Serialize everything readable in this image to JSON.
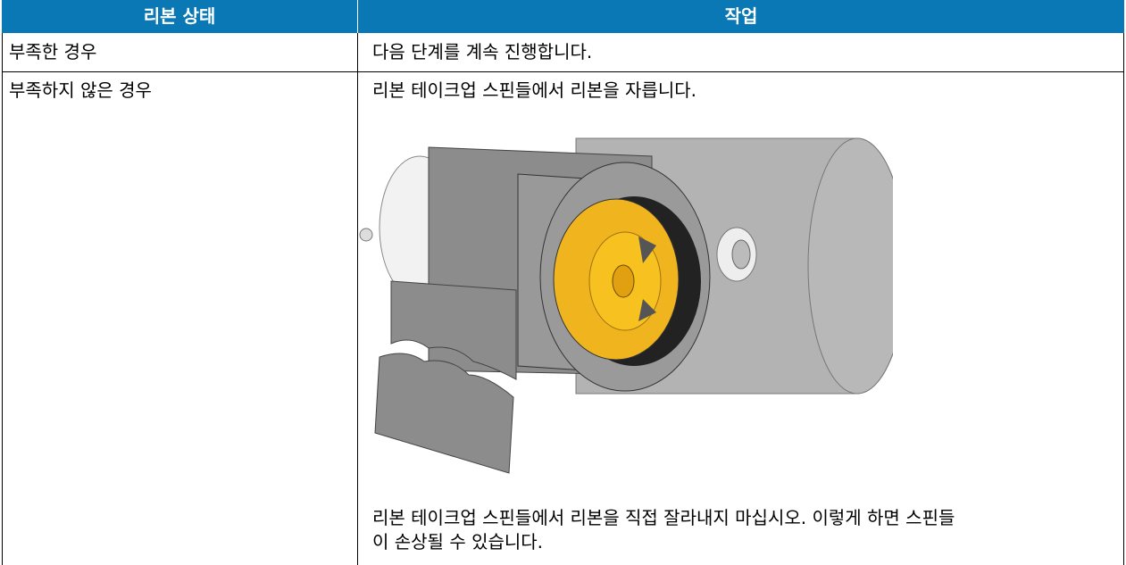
{
  "table": {
    "header": [
      "리본 상태",
      "작업"
    ],
    "rows": [
      [
        "부족한 경우",
        "다음 단계를 계속 진행합니다."
      ],
      [
        "부족하지 않은 경우",
        "리본 테이크업 스핀들에서 리본을 자릅니다."
      ]
    ]
  },
  "note": "리본 테이크업 스핀들에서 리본을 직접 잘라내지 마십시오. 이렇게 하면 스핀들이 손상될 수 있습니다."
}
